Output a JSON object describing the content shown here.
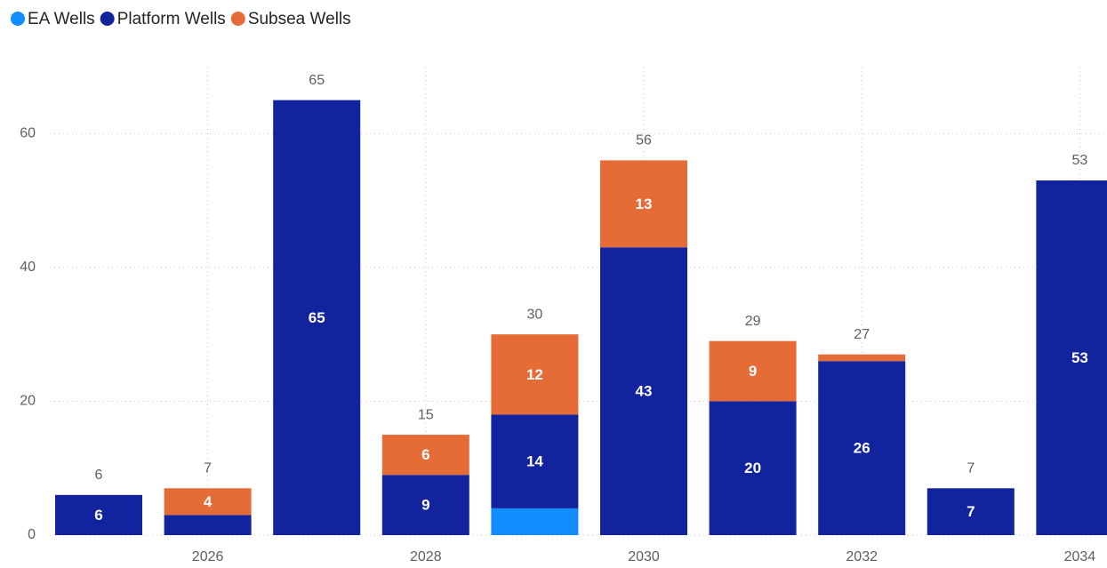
{
  "chart_data": {
    "type": "stacked_bar",
    "categories": [
      null,
      "2026",
      null,
      "2028",
      null,
      "2030",
      null,
      "2032",
      null,
      "2034"
    ],
    "series": [
      {
        "name": "EA Wells",
        "color": "#118DFF",
        "values": [
          null,
          null,
          null,
          null,
          4,
          null,
          null,
          null,
          null,
          null
        ]
      },
      {
        "name": "Platform Wells",
        "color": "#12239E",
        "values": [
          6,
          3,
          65,
          9,
          14,
          43,
          20,
          26,
          7,
          53
        ]
      },
      {
        "name": "Subsea Wells",
        "color": "#E66C37",
        "values": [
          null,
          4,
          null,
          6,
          12,
          13,
          9,
          1,
          null,
          null
        ]
      }
    ],
    "totals": [
      6,
      7,
      65,
      15,
      30,
      56,
      29,
      27,
      7,
      53
    ],
    "ylim": [
      0,
      70
    ],
    "yticks": [
      0,
      20,
      40,
      60
    ],
    "grid": true
  }
}
